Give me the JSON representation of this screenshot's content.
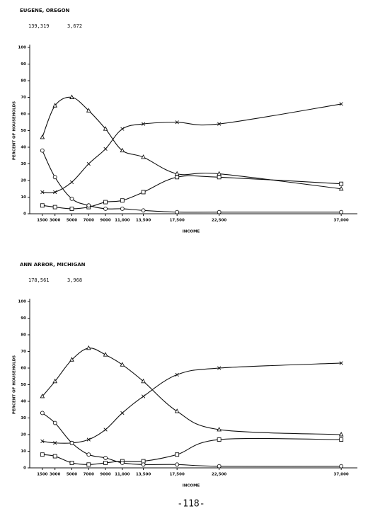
{
  "chart_data": [
    {
      "type": "line",
      "title": "EUGENE, OREGON",
      "figures": [
        "139,319",
        "3,672"
      ],
      "y_label": "PERCENT OF HOUSEHOLDS",
      "x_label": "INCOME",
      "x": [
        1500,
        3000,
        5000,
        7000,
        9000,
        11000,
        13500,
        17500,
        22500,
        37000
      ],
      "xlim": [
        0,
        38500
      ],
      "ylim": [
        0,
        100
      ],
      "xticks": [
        1500,
        3000,
        5000,
        7000,
        9000,
        {
          "value": 11000,
          "label": "11,000"
        },
        {
          "value": 13500,
          "label": "13,500"
        },
        {
          "value": 17500,
          "label": "17,500"
        },
        {
          "value": 22500,
          "label": "22,500"
        },
        {
          "value": 37000,
          "label": "37,000"
        }
      ],
      "yticks": [
        0,
        10,
        20,
        30,
        40,
        50,
        60,
        70,
        80,
        90,
        100
      ],
      "series": [
        {
          "marker": "triangle",
          "color": "#111111",
          "values": [
            46,
            65,
            70,
            62,
            51,
            38,
            34,
            24,
            24,
            15
          ]
        },
        {
          "marker": "cross",
          "color": "#111111",
          "values": [
            13,
            13,
            19,
            30,
            39,
            51,
            54,
            55,
            54,
            66
          ]
        },
        {
          "marker": "square",
          "color": "#111111",
          "values": [
            5,
            4,
            3,
            4,
            7,
            8,
            13,
            22,
            22,
            18
          ]
        },
        {
          "marker": "circle",
          "color": "#111111",
          "values": [
            38,
            22,
            9,
            5,
            3,
            3,
            2,
            1,
            1,
            1
          ]
        }
      ]
    },
    {
      "type": "line",
      "title": "ANN ARBOR, MICHIGAN",
      "figures": [
        "178,561",
        "3,968"
      ],
      "y_label": "PERCENT OF HOUSEHOLDS",
      "x_label": "INCOME",
      "x": [
        1500,
        3000,
        5000,
        7000,
        9000,
        11000,
        13500,
        17500,
        22500,
        37000
      ],
      "xlim": [
        0,
        38500
      ],
      "ylim": [
        0,
        100
      ],
      "xticks": [
        1500,
        3000,
        5000,
        7000,
        9000,
        {
          "value": 11000,
          "label": "11,000"
        },
        {
          "value": 13500,
          "label": "13,500"
        },
        {
          "value": 17500,
          "label": "17,500"
        },
        {
          "value": 22500,
          "label": "22,500"
        },
        {
          "value": 37000,
          "label": "37,000"
        }
      ],
      "yticks": [
        0,
        10,
        20,
        30,
        40,
        50,
        60,
        70,
        80,
        90,
        100
      ],
      "series": [
        {
          "marker": "triangle",
          "color": "#111111",
          "values": [
            43,
            52,
            65,
            72,
            68,
            62,
            52,
            34,
            23,
            20
          ]
        },
        {
          "marker": "cross",
          "color": "#111111",
          "values": [
            16,
            15,
            15,
            17,
            23,
            33,
            43,
            56,
            60,
            63
          ]
        },
        {
          "marker": "square",
          "color": "#111111",
          "values": [
            8,
            7,
            3,
            2,
            3,
            4,
            4,
            8,
            17,
            17
          ]
        },
        {
          "marker": "circle",
          "color": "#111111",
          "values": [
            33,
            27,
            15,
            8,
            6,
            3,
            2,
            2,
            1,
            1
          ]
        }
      ]
    }
  ],
  "page_number": "-118-"
}
